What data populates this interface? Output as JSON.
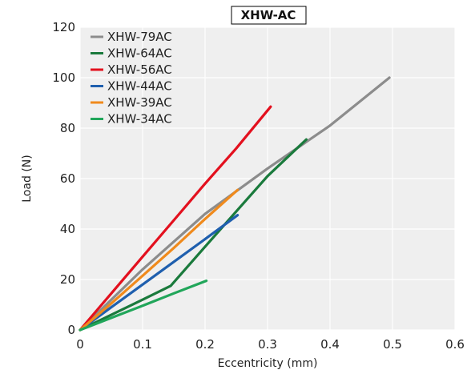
{
  "chart_data": {
    "type": "line",
    "title": "XHW-AC",
    "xlabel": "Eccentricity (mm)",
    "ylabel": "Load (N)",
    "xlim": [
      0,
      0.6
    ],
    "ylim": [
      0,
      120
    ],
    "xticks": [
      0,
      0.1,
      0.2,
      0.3,
      0.4,
      0.5,
      0.6
    ],
    "xtick_labels": [
      "0",
      "0.1",
      "0.2",
      "0.3",
      "0.4",
      "0.5",
      "0.6"
    ],
    "yticks": [
      0,
      20,
      40,
      60,
      80,
      100,
      120
    ],
    "ytick_labels": [
      "0",
      "20",
      "40",
      "60",
      "80",
      "100",
      "120"
    ],
    "grid": true,
    "legend_position": "top-left",
    "series": [
      {
        "name": "XHW-79AC",
        "color": "#8c8c8c",
        "x": [
          0,
          0.1,
          0.2,
          0.3,
          0.4,
          0.495
        ],
        "y": [
          0,
          24,
          46,
          64,
          81,
          100
        ]
      },
      {
        "name": "XHW-64AC",
        "color": "#1a7a3c",
        "x": [
          0,
          0.05,
          0.1,
          0.145,
          0.2,
          0.25,
          0.3,
          0.362
        ],
        "y": [
          0,
          6,
          12,
          17.5,
          33,
          47,
          61,
          75.5
        ]
      },
      {
        "name": "XHW-56AC",
        "color": "#e3101e",
        "x": [
          0,
          0.05,
          0.1,
          0.15,
          0.2,
          0.25,
          0.305
        ],
        "y": [
          0,
          14.5,
          29,
          43.5,
          58,
          72,
          88.5
        ]
      },
      {
        "name": "XHW-44AC",
        "color": "#1f5fae",
        "x": [
          0,
          0.05,
          0.1,
          0.15,
          0.2,
          0.252
        ],
        "y": [
          0,
          9,
          18,
          27,
          36,
          45.5
        ]
      },
      {
        "name": "XHW-39AC",
        "color": "#f08a1c",
        "x": [
          0,
          0.05,
          0.1,
          0.15,
          0.2,
          0.252
        ],
        "y": [
          0,
          10.5,
          21.5,
          32.5,
          44,
          55.5
        ]
      },
      {
        "name": "XHW-34AC",
        "color": "#21a65a",
        "x": [
          0,
          0.05,
          0.1,
          0.15,
          0.202
        ],
        "y": [
          0,
          4.8,
          9.6,
          14.5,
          19.5
        ]
      }
    ]
  }
}
